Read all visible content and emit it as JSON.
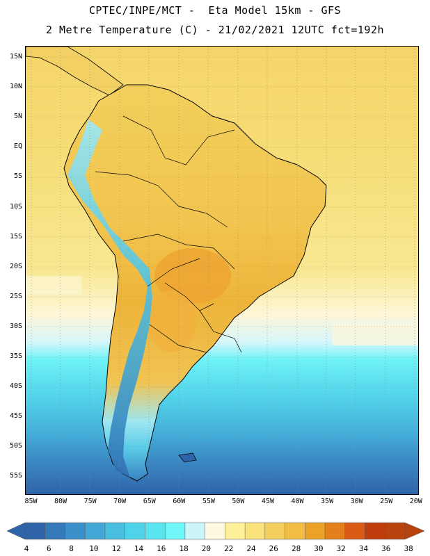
{
  "header": {
    "line1": "CPTEC/INPE/MCT -  Eta Model 15km - GFS",
    "line2": "2 Metre Temperature (C) - 21/02/2021 12UTC fct=192h"
  },
  "map": {
    "lat_ticks": [
      "15N",
      "10N",
      "5N",
      "EQ",
      "5S",
      "10S",
      "15S",
      "20S",
      "25S",
      "30S",
      "35S",
      "40S",
      "45S",
      "50S",
      "55S"
    ],
    "lon_ticks": [
      "85W",
      "80W",
      "75W",
      "70W",
      "65W",
      "60W",
      "55W",
      "50W",
      "45W",
      "40W",
      "35W",
      "30W",
      "25W",
      "20W"
    ],
    "lat_range": [
      17,
      -58
    ],
    "lon_range": [
      -86,
      -19.5
    ]
  },
  "colorbar": {
    "labels": [
      "4",
      "6",
      "8",
      "10",
      "12",
      "14",
      "16",
      "18",
      "20",
      "22",
      "24",
      "26",
      "28",
      "30",
      "32",
      "34",
      "36",
      "38"
    ],
    "colors": [
      "#2f64a8",
      "#3579b8",
      "#3a8fc9",
      "#43a7d6",
      "#49bedf",
      "#4fd3e8",
      "#5ae4ef",
      "#6ef6f9",
      "#ccf5fb",
      "#fff8e0",
      "#fdf29a",
      "#f9e27a",
      "#f5cf5e",
      "#f1bd45",
      "#eca226",
      "#e3801d",
      "#d85a14",
      "#c13d0e",
      "#b7440e"
    ],
    "ocean_deep": "#2f64a8",
    "land_warm": "#f5cf5e"
  }
}
